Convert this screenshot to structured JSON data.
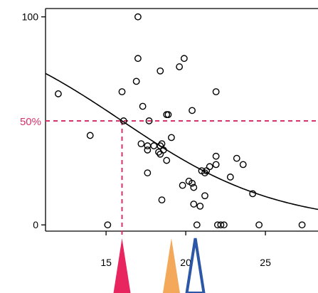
{
  "chart_data": {
    "type": "scatter",
    "title": "",
    "xlabel": "",
    "ylabel": "",
    "xlim": [
      11.2,
      28.3
    ],
    "ylim": [
      -3,
      104
    ],
    "x_ticks": [
      15,
      20,
      25
    ],
    "y_ticks": [
      {
        "value": 0,
        "label": "0"
      },
      {
        "value": 100,
        "label": "100"
      }
    ],
    "grid": false,
    "box": "left-top-bottom",
    "points": [
      [
        17.0,
        100
      ],
      [
        17.0,
        80
      ],
      [
        19.9,
        80
      ],
      [
        18.4,
        74
      ],
      [
        19.6,
        76
      ],
      [
        16.9,
        69
      ],
      [
        16.0,
        64
      ],
      [
        21.9,
        64
      ],
      [
        12.0,
        63
      ],
      [
        17.3,
        57
      ],
      [
        20.4,
        55
      ],
      [
        18.9,
        53
      ],
      [
        18.8,
        53
      ],
      [
        16.1,
        50
      ],
      [
        17.7,
        50
      ],
      [
        14.0,
        43
      ],
      [
        19.1,
        42
      ],
      [
        17.2,
        39
      ],
      [
        17.6,
        38
      ],
      [
        18.0,
        38
      ],
      [
        18.4,
        38
      ],
      [
        18.5,
        39
      ],
      [
        17.6,
        36
      ],
      [
        18.6,
        36
      ],
      [
        18.3,
        35
      ],
      [
        18.4,
        34
      ],
      [
        18.8,
        31
      ],
      [
        21.9,
        33
      ],
      [
        23.2,
        32
      ],
      [
        23.6,
        29
      ],
      [
        21.5,
        28
      ],
      [
        21.9,
        29
      ],
      [
        21.0,
        26
      ],
      [
        21.2,
        25
      ],
      [
        21.3,
        26
      ],
      [
        17.6,
        25
      ],
      [
        22.8,
        23
      ],
      [
        20.2,
        21
      ],
      [
        20.4,
        20
      ],
      [
        19.8,
        19
      ],
      [
        20.5,
        18
      ],
      [
        21.2,
        14
      ],
      [
        24.2,
        15
      ],
      [
        18.5,
        12
      ],
      [
        20.5,
        10
      ],
      [
        20.9,
        9
      ],
      [
        15.1,
        0
      ],
      [
        20.7,
        0
      ],
      [
        22.0,
        0
      ],
      [
        22.2,
        0
      ],
      [
        22.4,
        0
      ],
      [
        24.6,
        0
      ],
      [
        27.3,
        0
      ]
    ],
    "fitted_curve": {
      "type": "logistic",
      "midpoint": 16.0,
      "slope": 0.205,
      "scale": 100
    },
    "reference": {
      "label": "50%",
      "y": 50,
      "x": 16.0,
      "color": "#d6336c"
    },
    "markers": [
      {
        "x": 16.0,
        "style": "filled",
        "color": "#e8255f"
      },
      {
        "x": 19.1,
        "style": "filled",
        "color": "#f4a95a"
      },
      {
        "x": 20.6,
        "style": "outline",
        "color": "#2c56a6"
      }
    ]
  }
}
